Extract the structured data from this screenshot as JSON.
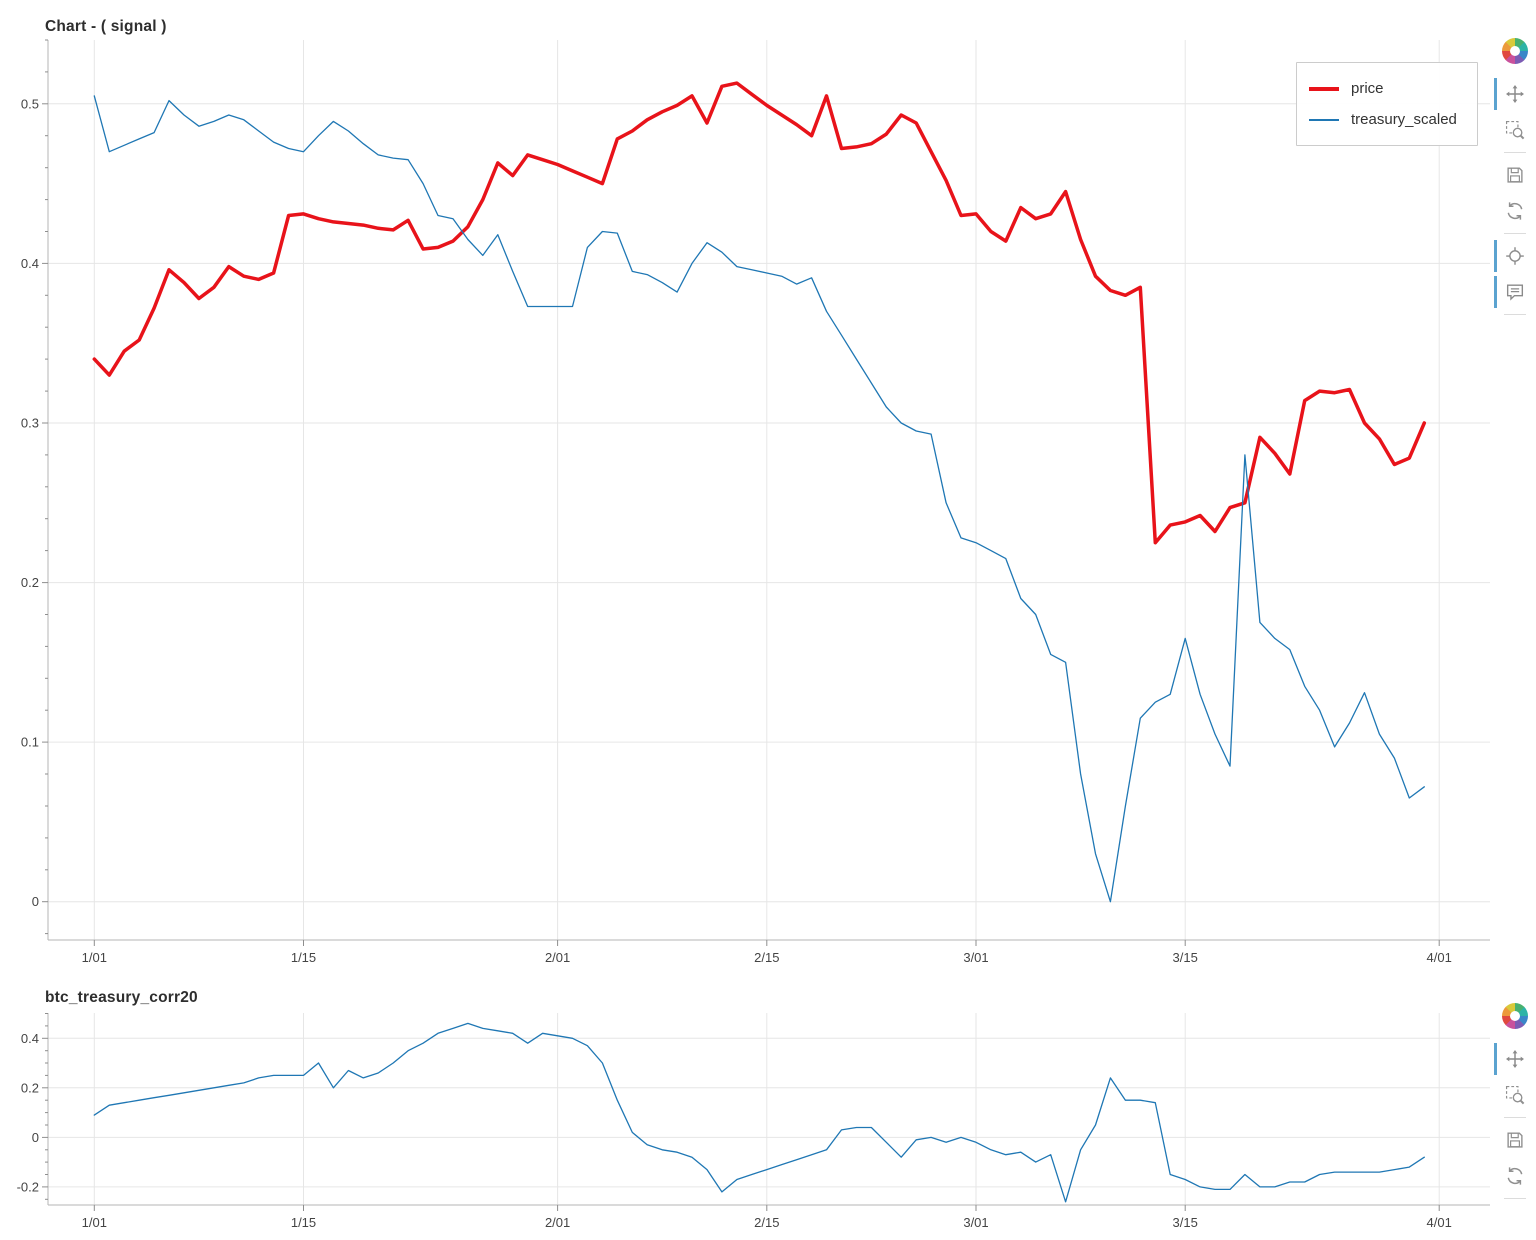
{
  "figures": [
    {
      "title": "Chart - ( signal )",
      "legend": {
        "items": [
          {
            "label": "price"
          },
          {
            "label": "treasury_scaled"
          }
        ]
      },
      "toolbar": {
        "tool_groups": [
          [
            "pan",
            "box-zoom"
          ],
          [
            "save",
            "reset"
          ],
          [
            "crosshair",
            "hover"
          ]
        ],
        "active": [
          "pan",
          "crosshair",
          "hover"
        ]
      }
    },
    {
      "title": "btc_treasury_corr20",
      "toolbar": {
        "tool_groups": [
          [
            "pan",
            "box-zoom"
          ],
          [
            "save",
            "reset"
          ]
        ],
        "active": [
          "pan"
        ]
      }
    }
  ],
  "colors": {
    "price": "#e8131a",
    "treasury": "#1f77b4",
    "grid": "#e6e6e6",
    "axis": "#b5b5b5",
    "tick": "#8e8e8e",
    "tick_label": "#444444",
    "active_tool_bar": "#5ba3d0"
  },
  "chart_data": [
    {
      "type": "line",
      "title": "Chart - ( signal )",
      "xlabel": "",
      "ylabel": "",
      "grid": true,
      "legend_position": "top-right",
      "xlim": [
        -3.1,
        93.4
      ],
      "ylim": [
        -0.024,
        0.54
      ],
      "y_ticks": [
        0,
        0.1,
        0.2,
        0.3,
        0.4,
        0.5
      ],
      "y_minor_step": 0.02,
      "x_axis": {
        "unit": "day index from 1/01",
        "tick_labels": [
          "1/01",
          "1/15",
          "2/01",
          "2/15",
          "3/01",
          "3/15",
          "4/01"
        ],
        "tick_day_index": [
          0,
          14,
          31,
          45,
          59,
          73,
          90
        ]
      },
      "series": [
        {
          "name": "price",
          "color": "#e8131a",
          "line_width": 3.5,
          "values": [
            0.34,
            0.33,
            0.345,
            0.352,
            0.372,
            0.396,
            0.388,
            0.378,
            0.385,
            0.398,
            0.392,
            0.39,
            0.394,
            0.43,
            0.431,
            0.428,
            0.426,
            0.425,
            0.424,
            0.422,
            0.421,
            0.427,
            0.409,
            0.41,
            0.414,
            0.423,
            0.44,
            0.463,
            0.455,
            0.468,
            0.465,
            0.462,
            0.458,
            0.454,
            0.45,
            0.478,
            0.483,
            0.49,
            0.495,
            0.499,
            0.505,
            0.488,
            0.511,
            0.513,
            0.506,
            0.499,
            0.493,
            0.487,
            0.48,
            0.505,
            0.472,
            0.473,
            0.475,
            0.481,
            0.493,
            0.488,
            0.47,
            0.452,
            0.43,
            0.431,
            0.42,
            0.414,
            0.435,
            0.428,
            0.431,
            0.445,
            0.415,
            0.392,
            0.383,
            0.38,
            0.385,
            0.225,
            0.236,
            0.238,
            0.242,
            0.232,
            0.247,
            0.25,
            0.291,
            0.281,
            0.268,
            0.314,
            0.32,
            0.319,
            0.321,
            0.3,
            0.29,
            0.274,
            0.278,
            0.3
          ]
        },
        {
          "name": "treasury_scaled",
          "color": "#1f77b4",
          "line_width": 1.3,
          "values": [
            0.505,
            0.47,
            0.474,
            0.478,
            0.482,
            0.502,
            0.493,
            0.486,
            0.489,
            0.493,
            0.49,
            0.483,
            0.476,
            0.472,
            0.47,
            0.48,
            0.489,
            0.483,
            0.475,
            0.468,
            0.466,
            0.465,
            0.45,
            0.43,
            0.428,
            0.415,
            0.405,
            0.418,
            0.395,
            0.373,
            0.373,
            0.373,
            0.373,
            0.41,
            0.42,
            0.419,
            0.395,
            0.393,
            0.388,
            0.382,
            0.4,
            0.413,
            0.407,
            0.398,
            0.396,
            0.394,
            0.392,
            0.387,
            0.391,
            0.37,
            0.355,
            0.34,
            0.325,
            0.31,
            0.3,
            0.295,
            0.293,
            0.25,
            0.228,
            0.225,
            0.22,
            0.215,
            0.19,
            0.18,
            0.155,
            0.15,
            0.08,
            0.03,
            0.0,
            0.06,
            0.115,
            0.125,
            0.13,
            0.165,
            0.13,
            0.105,
            0.085,
            0.28,
            0.175,
            0.165,
            0.158,
            0.135,
            0.12,
            0.097,
            0.112,
            0.131,
            0.105,
            0.09,
            0.065,
            0.072
          ]
        }
      ]
    },
    {
      "type": "line",
      "title": "btc_treasury_corr20",
      "xlabel": "",
      "ylabel": "",
      "grid": true,
      "xlim": [
        -3.1,
        93.4
      ],
      "ylim": [
        -0.273,
        0.502
      ],
      "y_ticks": [
        -0.2,
        0,
        0.2,
        0.4
      ],
      "y_minor_step": 0.05,
      "x_axis": {
        "unit": "day index from 1/01",
        "tick_labels": [
          "1/01",
          "1/15",
          "2/01",
          "2/15",
          "3/01",
          "3/15",
          "4/01"
        ],
        "tick_day_index": [
          0,
          14,
          31,
          45,
          59,
          73,
          90
        ]
      },
      "series": [
        {
          "name": "btc_treasury_corr20",
          "color": "#1f77b4",
          "line_width": 1.3,
          "values": [
            0.09,
            0.13,
            0.14,
            0.15,
            0.16,
            0.17,
            0.18,
            0.19,
            0.2,
            0.21,
            0.22,
            0.24,
            0.25,
            0.25,
            0.25,
            0.3,
            0.2,
            0.27,
            0.24,
            0.26,
            0.3,
            0.35,
            0.38,
            0.42,
            0.44,
            0.46,
            0.44,
            0.43,
            0.42,
            0.38,
            0.42,
            0.41,
            0.4,
            0.37,
            0.3,
            0.15,
            0.02,
            -0.03,
            -0.05,
            -0.06,
            -0.08,
            -0.13,
            -0.22,
            -0.17,
            -0.15,
            -0.13,
            -0.11,
            -0.09,
            -0.07,
            -0.05,
            0.03,
            0.04,
            0.04,
            -0.02,
            -0.08,
            -0.01,
            0.0,
            -0.02,
            0.0,
            -0.02,
            -0.05,
            -0.07,
            -0.06,
            -0.1,
            -0.07,
            -0.26,
            -0.05,
            0.05,
            0.24,
            0.15,
            0.15,
            0.14,
            -0.15,
            -0.17,
            -0.2,
            -0.21,
            -0.21,
            -0.15,
            -0.2,
            -0.2,
            -0.18,
            -0.18,
            -0.15,
            -0.14,
            -0.14,
            -0.14,
            -0.14,
            -0.13,
            -0.12,
            -0.08
          ]
        }
      ]
    }
  ]
}
